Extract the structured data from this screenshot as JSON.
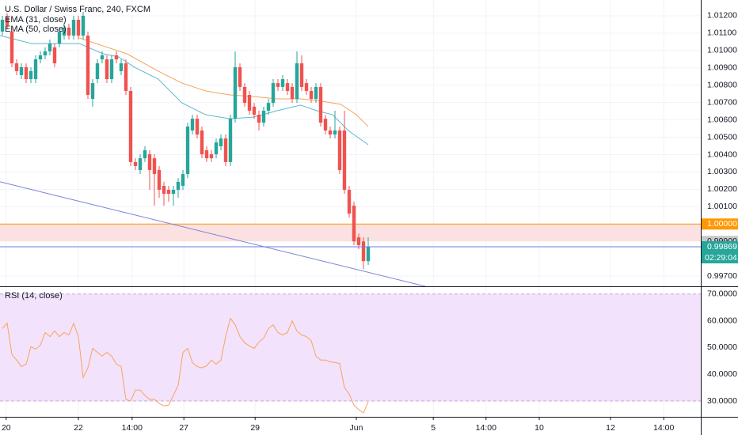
{
  "chart_data": [
    {
      "type": "candlestick",
      "title": "U.S. Dollar / Swiss Franc, 240, FXCM",
      "up_color": "#26a69a",
      "down_color": "#ef5350",
      "xlim": [
        -0.5,
        147
      ],
      "ylim": [
        0.99641,
        1.01291
      ],
      "yticks": [
        {
          "value": 1.012,
          "label": "1.01200"
        },
        {
          "value": 1.011,
          "label": "1.01100"
        },
        {
          "value": 1.01,
          "label": "1.01000"
        },
        {
          "value": 1.009,
          "label": "1.00900"
        },
        {
          "value": 1.008,
          "label": "1.00800"
        },
        {
          "value": 1.007,
          "label": "1.00700"
        },
        {
          "value": 1.006,
          "label": "1.00600"
        },
        {
          "value": 1.005,
          "label": "1.00500"
        },
        {
          "value": 1.004,
          "label": "1.00400"
        },
        {
          "value": 1.003,
          "label": "1.00300"
        },
        {
          "value": 1.002,
          "label": "1.00200"
        },
        {
          "value": 1.001,
          "label": "1.00100"
        },
        {
          "value": 0.997,
          "label": "0.99700"
        }
      ],
      "x": [
        0,
        1,
        2,
        3,
        4,
        5,
        6,
        7,
        8,
        9,
        10,
        11,
        12,
        13,
        14,
        15,
        16,
        17,
        18,
        19,
        20,
        21,
        22,
        23,
        24,
        25,
        26,
        27,
        28,
        29,
        30,
        31,
        32,
        33,
        34,
        35,
        36,
        37,
        38,
        39,
        40,
        41,
        42,
        43,
        44,
        45,
        46,
        47,
        48,
        49,
        50,
        51,
        52,
        53,
        54,
        55,
        56,
        57,
        58,
        59,
        60,
        61,
        62,
        63,
        64,
        65,
        66,
        67,
        68,
        69,
        70,
        71,
        72,
        73,
        74,
        75,
        76,
        77
      ],
      "open": [
        1.01109,
        1.01191,
        1.01109,
        1.00926,
        1.00858,
        1.00904,
        1.00835,
        1.00835,
        1.00949,
        1.00972,
        1.00995,
        1.01018,
        1.0104,
        1.01086,
        1.01132,
        1.01086,
        1.01177,
        1.01086,
        1.01086,
        1.00721,
        1.00835,
        1.00949,
        1.00949,
        1.00835,
        1.00972,
        1.00881,
        1.00926,
        1.00767,
        1.00357,
        1.00311,
        1.00379,
        1.00402,
        1.00379,
        1.00311,
        1.0022,
        1.00197,
        1.00174,
        1.00197,
        1.0022,
        1.00288,
        1.00539,
        1.00607,
        1.00539,
        1.00425,
        1.00402,
        1.00402,
        1.00448,
        1.00493,
        1.00357,
        1.00607,
        1.00904,
        1.0079,
        1.00744,
        1.00676,
        1.0063,
        1.00584,
        1.00653,
        1.00698,
        1.00812,
        1.0079,
        1.00812,
        1.0079,
        1.00721,
        1.00926,
        1.00812,
        1.00767,
        1.00721,
        1.0079,
        1.00607,
        1.00539,
        1.00516,
        1.00539,
        1.00539,
        1.00197,
        1.00106,
        0.99923,
        0.999,
        0.99786
      ],
      "high": [
        1.012,
        1.01214,
        1.01132,
        1.00949,
        1.00926,
        1.00926,
        1.00904,
        1.00972,
        1.00995,
        1.01018,
        1.01063,
        1.0104,
        1.01132,
        1.01154,
        1.01154,
        1.012,
        1.012,
        1.01223,
        1.01109,
        1.00835,
        1.00949,
        1.00995,
        1.00972,
        1.00972,
        1.00995,
        1.00949,
        1.00949,
        1.0079,
        1.00379,
        1.00402,
        1.00448,
        1.00425,
        1.00402,
        1.00334,
        1.00243,
        1.0022,
        1.0022,
        1.00265,
        1.00311,
        1.00584,
        1.0063,
        1.0063,
        1.00562,
        1.00448,
        1.00425,
        1.00493,
        1.00516,
        1.00516,
        1.0063,
        1.00995,
        1.00926,
        1.00812,
        1.00767,
        1.00698,
        1.00653,
        1.00676,
        1.00721,
        1.00835,
        1.00835,
        1.00858,
        1.00835,
        1.00812,
        1.00995,
        1.00972,
        1.00835,
        1.0079,
        1.00812,
        1.00812,
        1.0063,
        1.00562,
        1.00653,
        1.00562,
        1.00653,
        1.0022,
        1.00129,
        0.99946,
        0.99923,
        0.99923
      ],
      "low": [
        1.01086,
        1.01122,
        1.00904,
        1.00858,
        1.00835,
        1.00812,
        1.00812,
        1.00812,
        1.00926,
        1.00949,
        1.00972,
        1.00904,
        1.01018,
        1.01063,
        1.01063,
        1.01063,
        1.01063,
        1.01063,
        1.00721,
        1.00676,
        1.00812,
        1.00926,
        1.00812,
        1.00812,
        1.00926,
        1.00858,
        1.00744,
        1.00334,
        1.00311,
        1.00288,
        1.00357,
        1.00197,
        1.00106,
        1.00151,
        1.00106,
        1.00129,
        1.00106,
        1.00151,
        1.00197,
        1.00265,
        1.00516,
        1.00493,
        1.00379,
        1.00357,
        1.00357,
        1.00379,
        1.00425,
        1.00334,
        1.00334,
        1.00584,
        1.00767,
        1.00676,
        1.0063,
        1.00607,
        1.00539,
        1.00562,
        1.0063,
        1.00676,
        1.00767,
        1.00767,
        1.00744,
        1.00698,
        1.00698,
        1.00767,
        1.00744,
        1.00698,
        1.00698,
        1.00562,
        1.00516,
        1.00493,
        1.00493,
        1.00288,
        1.00174,
        1.00037,
        0.99878,
        0.99855,
        0.99741,
        0.99764
      ],
      "close": [
        1.01177,
        1.01145,
        1.00926,
        1.00881,
        1.00904,
        1.00835,
        1.00881,
        1.00949,
        1.00972,
        1.00995,
        1.0104,
        1.00926,
        1.01109,
        1.01132,
        1.01086,
        1.01177,
        1.01086,
        1.012,
        1.00744,
        1.00812,
        1.00926,
        1.00972,
        1.00835,
        1.00949,
        1.00949,
        1.00926,
        1.00767,
        1.00357,
        1.00334,
        1.00379,
        1.00425,
        1.00311,
        1.00288,
        1.00197,
        1.00174,
        1.00174,
        1.00197,
        1.00243,
        1.00288,
        1.00562,
        1.00607,
        1.00516,
        1.00402,
        1.00379,
        1.00379,
        1.0047,
        1.00493,
        1.00357,
        1.00607,
        1.00904,
        1.0079,
        1.00698,
        1.00653,
        1.0063,
        1.00584,
        1.00653,
        1.00698,
        1.00812,
        1.0079,
        1.00835,
        1.00767,
        1.00721,
        1.00926,
        1.0079,
        1.00767,
        1.00721,
        1.0079,
        1.00584,
        1.00539,
        1.00516,
        1.00539,
        1.00311,
        1.00197,
        1.0006,
        0.999,
        0.99878,
        0.99786,
        0.99869
      ],
      "series": [
        {
          "name": "EMA (31, close)",
          "color": "#5fb8c9",
          "x": [
            -0.5,
            6.2,
            16.2,
            21.2,
            24.5,
            27.8,
            32.8,
            37.8,
            42.8,
            47.8,
            52.8,
            57.8,
            62.8,
            66.2,
            69.5,
            72.8,
            77
          ],
          "values": [
            1.01086,
            1.0104,
            1.0104,
            1.00981,
            1.00963,
            1.00904,
            1.00835,
            1.00698,
            1.0063,
            1.00607,
            1.00616,
            1.00653,
            1.00685,
            1.00653,
            1.0063,
            1.00539,
            1.00457
          ]
        },
        {
          "name": "EMA (50, close)",
          "color": "#f7a35c",
          "x": [
            16.2,
            26.2,
            32.8,
            37.8,
            42.8,
            47.8,
            52.8,
            57.8,
            62.8,
            66.2,
            71.2,
            74.5,
            77
          ],
          "values": [
            1.01072,
            1.00981,
            1.00881,
            1.00812,
            1.00767,
            1.00744,
            1.00735,
            1.00721,
            1.00721,
            1.00712,
            1.0069,
            1.0063,
            1.00562
          ]
        }
      ],
      "trendline": {
        "color": "#7b83d8",
        "x": [
          -0.5,
          89
        ],
        "values": [
          1.00243,
          0.99641
        ]
      },
      "zone": {
        "values": [
          1.0,
          0.999
        ],
        "fill": "#fbe1e1",
        "line_color": "#ff9800"
      },
      "price_labels": [
        {
          "value": 1.0,
          "label": "1.00000",
          "color": "#ff9800",
          "text_color": "#ffffff"
        },
        {
          "value": 0.999,
          "label": "0.99900",
          "color": "#c8c8c8",
          "text_color": "#131722"
        },
        {
          "value": 0.99869,
          "label": "0.99869",
          "color": "#26a69a",
          "text_color": "#ffffff",
          "line_color": "#6c7de0"
        }
      ],
      "countdown": "02:29:04"
    },
    {
      "type": "line",
      "title": "RSI (14, close)",
      "color": "#f7a35c",
      "band": [
        30,
        70
      ],
      "band_fill": "#f3e2fc",
      "band_line": "#c9a6dc",
      "xlim": [
        -0.5,
        147
      ],
      "ylim": [
        24.1,
        72.6
      ],
      "yticks": [
        {
          "value": 70,
          "label": "70.0000"
        },
        {
          "value": 60,
          "label": "60.0000"
        },
        {
          "value": 50,
          "label": "50.0000"
        },
        {
          "value": 40,
          "label": "40.0000"
        },
        {
          "value": 30,
          "label": "30.0000"
        }
      ],
      "xticks": [
        {
          "value": 0.8,
          "label": "20"
        },
        {
          "value": 16,
          "label": "22"
        },
        {
          "value": 27.3,
          "label": "14:00"
        },
        {
          "value": 38.2,
          "label": "27"
        },
        {
          "value": 53.2,
          "label": "29"
        },
        {
          "value": 74.5,
          "label": "Jun"
        },
        {
          "value": 90.7,
          "label": "5"
        },
        {
          "value": 101.8,
          "label": "14:00"
        },
        {
          "value": 113,
          "label": "10"
        },
        {
          "value": 128,
          "label": "12"
        },
        {
          "value": 139.2,
          "label": "14:00"
        }
      ],
      "x": [
        0,
        1,
        2,
        3,
        4,
        5,
        6,
        7,
        8,
        9,
        10,
        11,
        12,
        13,
        14,
        15,
        16,
        17,
        18,
        19,
        20,
        21,
        22,
        23,
        24,
        25,
        26,
        27,
        28,
        29,
        30,
        31,
        32,
        33,
        34,
        35,
        36,
        37,
        38,
        39,
        40,
        41,
        42,
        43,
        44,
        45,
        46,
        47,
        48,
        49,
        50,
        51,
        52,
        53,
        54,
        55,
        56,
        57,
        58,
        59,
        60,
        61,
        62,
        63,
        64,
        65,
        66,
        67,
        68,
        69,
        70,
        71,
        72,
        73,
        74,
        75,
        76,
        77
      ],
      "values": [
        57.1,
        59.1,
        47.4,
        45.3,
        42.9,
        43.8,
        50.3,
        49.4,
        50.9,
        55.6,
        54.1,
        56.2,
        54.1,
        55.6,
        54.7,
        59.1,
        54.1,
        38.8,
        42.4,
        49.7,
        48.2,
        46.8,
        48.2,
        46.8,
        43.8,
        42.9,
        30.6,
        30.0,
        34.1,
        34.1,
        32.1,
        30.6,
        30.6,
        29.1,
        28.2,
        28.5,
        32.1,
        35.9,
        48.2,
        49.7,
        44.4,
        42.9,
        42.4,
        43.2,
        45.3,
        43.8,
        45.3,
        54.1,
        60.9,
        58.5,
        54.1,
        51.8,
        50.6,
        49.7,
        52.1,
        53.5,
        57.1,
        58.5,
        55.6,
        54.7,
        55.6,
        60.0,
        56.2,
        54.7,
        54.1,
        52.6,
        46.8,
        45.3,
        45.3,
        44.7,
        44.4,
        44.0,
        35.0,
        32.6,
        28.5,
        26.8,
        25.6,
        29.7
      ]
    }
  ]
}
